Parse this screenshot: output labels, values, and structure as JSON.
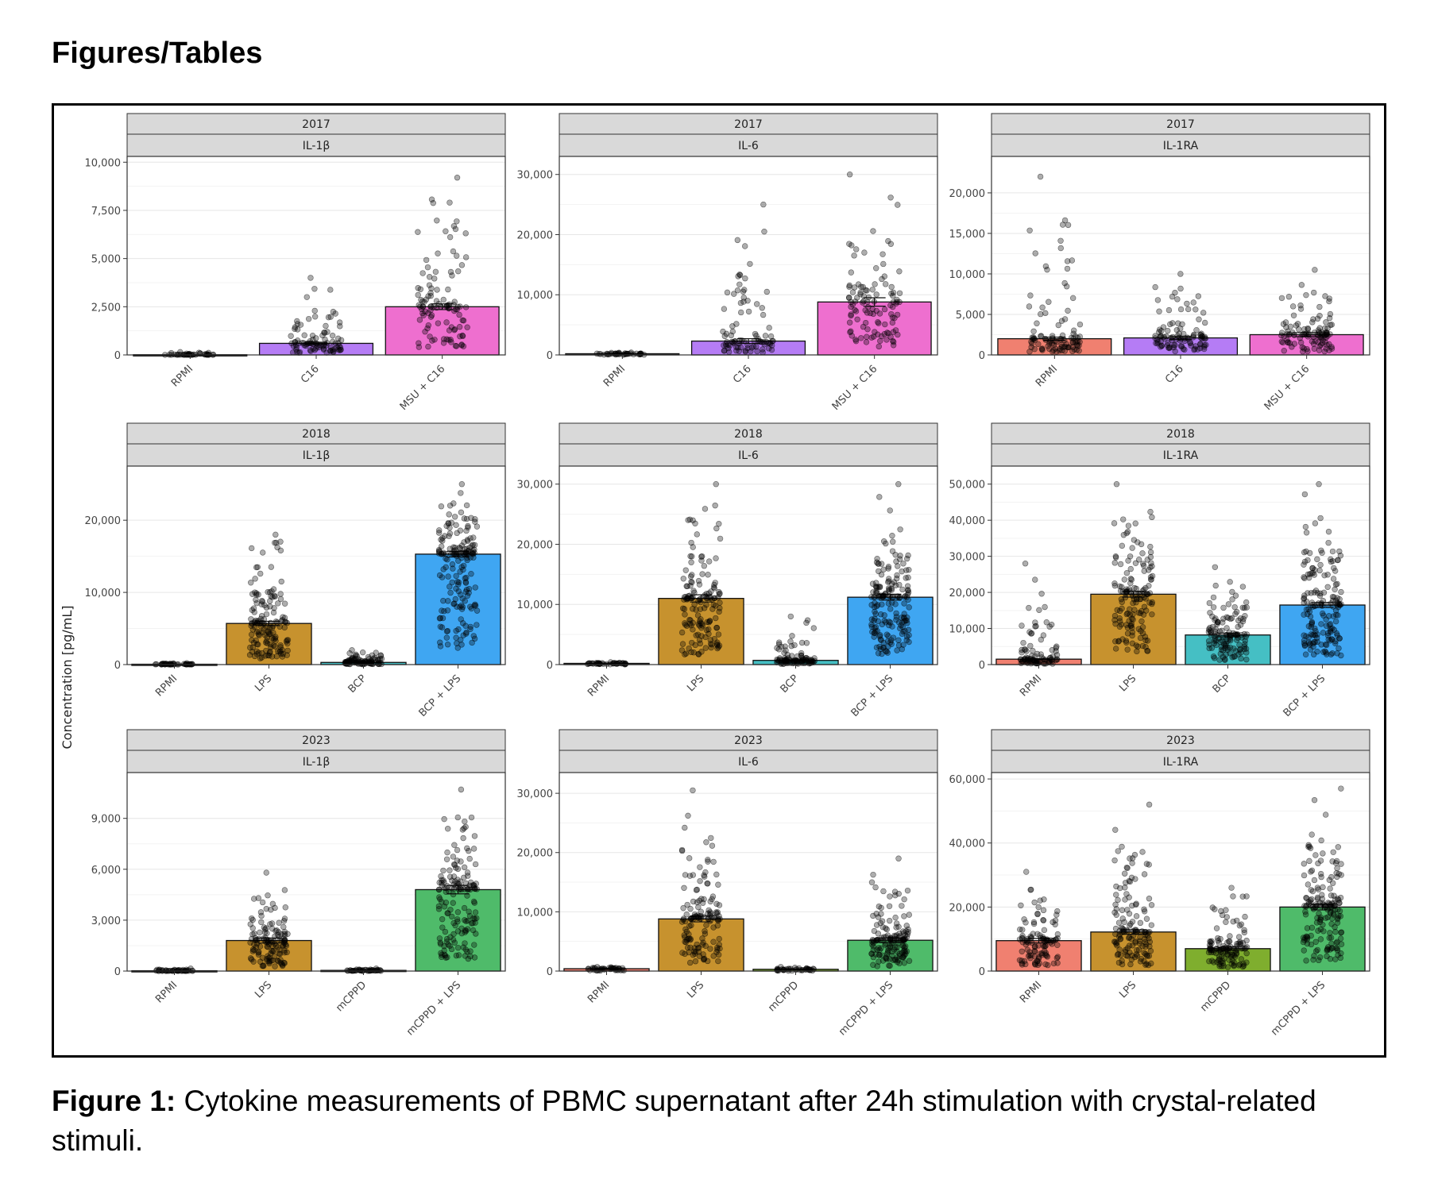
{
  "heading": "Figures/Tables",
  "caption": {
    "label": "Figure 1:",
    "text": " Cytokine measurements of PBMC supernatant after 24h stimulation with crystal-related stimuli."
  },
  "colors": {
    "RPMI": "#f08070",
    "C16": "#b57cf5",
    "MSU + C16": "#ee6fcf",
    "LPS": "#c7922e",
    "BCP": "#45bfc4",
    "BCP + LPS": "#3fa6f2",
    "mCPPD": "#7fae2e",
    "mCPPD + LPS": "#4fbb6a",
    "neutral": "#555555"
  },
  "chart_data": [
    {
      "type": "bar",
      "year": "2017",
      "cytokine": "IL-1β",
      "categories": [
        "RPMI",
        "C16",
        "MSU + C16"
      ],
      "values": [
        10,
        600,
        2500
      ],
      "errors": [
        3,
        60,
        150
      ],
      "ylim": [
        0,
        10300
      ],
      "ticks": [
        0,
        2500,
        5000,
        7500,
        10000
      ],
      "tick_labels": [
        "0",
        "2,500",
        "5,000",
        "7,500",
        "10,000"
      ],
      "bar_colors": [
        "neutral",
        "C16",
        "MSU + C16"
      ],
      "points_max": [
        150,
        4000,
        9200
      ],
      "n_points": [
        40,
        90,
        110
      ]
    },
    {
      "type": "bar",
      "year": "2017",
      "cytokine": "IL-6",
      "categories": [
        "RPMI",
        "C16",
        "MSU + C16"
      ],
      "values": [
        200,
        2300,
        8800
      ],
      "errors": [
        50,
        400,
        700
      ],
      "ylim": [
        0,
        33000
      ],
      "ticks": [
        0,
        10000,
        20000,
        30000
      ],
      "tick_labels": [
        "0",
        "10,000",
        "20,000",
        "30,000"
      ],
      "bar_colors": [
        "neutral",
        "C16",
        "MSU + C16"
      ],
      "points_max": [
        400,
        25000,
        30000
      ],
      "n_points": [
        40,
        90,
        110
      ]
    },
    {
      "type": "bar",
      "year": "2017",
      "cytokine": "IL-1RA",
      "categories": [
        "RPMI",
        "C16",
        "MSU + C16"
      ],
      "values": [
        2000,
        2100,
        2500
      ],
      "errors": [
        200,
        200,
        250
      ],
      "ylim": [
        0,
        24500
      ],
      "ticks": [
        0,
        5000,
        10000,
        15000,
        20000
      ],
      "tick_labels": [
        "0",
        "5,000",
        "10,000",
        "15,000",
        "20,000"
      ],
      "bar_colors": [
        "RPMI",
        "C16",
        "MSU + C16"
      ],
      "points_max": [
        22000,
        10000,
        10500
      ],
      "n_points": [
        100,
        100,
        110
      ]
    },
    {
      "type": "bar",
      "year": "2018",
      "cytokine": "IL-1β",
      "categories": [
        "RPMI",
        "LPS",
        "BCP",
        "BCP + LPS"
      ],
      "values": [
        50,
        5700,
        300,
        15300
      ],
      "errors": [
        10,
        300,
        40,
        400
      ],
      "ylim": [
        0,
        27500
      ],
      "ticks": [
        0,
        10000,
        20000
      ],
      "tick_labels": [
        "0",
        "10,000",
        "20,000"
      ],
      "bar_colors": [
        "neutral",
        "LPS",
        "BCP",
        "BCP + LPS"
      ],
      "points_max": [
        200,
        18000,
        2000,
        25000
      ],
      "n_points": [
        40,
        150,
        100,
        180
      ],
      "tick_year": "2018"
    },
    {
      "type": "bar",
      "year": "2018",
      "cytokine": "IL-6",
      "categories": [
        "RPMI",
        "LPS",
        "BCP",
        "BCP + LPS"
      ],
      "values": [
        200,
        11000,
        700,
        11200
      ],
      "errors": [
        50,
        600,
        100,
        500
      ],
      "ylim": [
        0,
        33000
      ],
      "ticks": [
        0,
        10000,
        20000,
        30000
      ],
      "tick_labels": [
        "0",
        "10,000",
        "20,000",
        "30,000"
      ],
      "bar_colors": [
        "neutral",
        "LPS",
        "BCP",
        "BCP + LPS"
      ],
      "points_max": [
        400,
        30000,
        8000,
        30000
      ],
      "n_points": [
        40,
        150,
        100,
        180
      ]
    },
    {
      "type": "bar",
      "year": "2018",
      "cytokine": "IL-1RA",
      "categories": [
        "RPMI",
        "LPS",
        "BCP",
        "BCP + LPS"
      ],
      "values": [
        1500,
        19500,
        8200,
        16500
      ],
      "errors": [
        150,
        800,
        500,
        700
      ],
      "ylim": [
        0,
        55000
      ],
      "ticks": [
        0,
        10000,
        20000,
        30000,
        40000,
        50000
      ],
      "tick_labels": [
        "0",
        "10,000",
        "20,000",
        "30,000",
        "40,000",
        "50,000"
      ],
      "bar_colors": [
        "RPMI",
        "LPS",
        "BCP",
        "BCP + LPS"
      ],
      "points_max": [
        28000,
        50000,
        27000,
        50000
      ],
      "n_points": [
        90,
        150,
        130,
        170
      ]
    },
    {
      "type": "bar",
      "year": "2023",
      "cytokine": "IL-1β",
      "categories": [
        "RPMI",
        "LPS",
        "mCPPD",
        "mCPPD + LPS"
      ],
      "values": [
        20,
        1800,
        40,
        4800
      ],
      "errors": [
        5,
        150,
        10,
        250
      ],
      "ylim": [
        0,
        11700
      ],
      "ticks": [
        0,
        3000,
        6000,
        9000
      ],
      "tick_labels": [
        "0",
        "3,000",
        "6,000",
        "9,000"
      ],
      "bar_colors": [
        "neutral",
        "LPS",
        "neutral",
        "mCPPD + LPS"
      ],
      "points_max": [
        150,
        5800,
        150,
        10700
      ],
      "n_points": [
        40,
        130,
        40,
        160
      ]
    },
    {
      "type": "bar",
      "year": "2023",
      "cytokine": "IL-6",
      "categories": [
        "RPMI",
        "LPS",
        "mCPPD",
        "mCPPD + LPS"
      ],
      "values": [
        400,
        8800,
        300,
        5200
      ],
      "errors": [
        80,
        500,
        60,
        400
      ],
      "ylim": [
        0,
        33500
      ],
      "ticks": [
        0,
        10000,
        20000,
        30000
      ],
      "tick_labels": [
        "0",
        "10,000",
        "20,000",
        "30,000"
      ],
      "bar_colors": [
        "RPMI",
        "LPS",
        "mCPPD",
        "mCPPD + LPS"
      ],
      "points_max": [
        700,
        30500,
        700,
        19000
      ],
      "n_points": [
        40,
        140,
        40,
        150
      ]
    },
    {
      "type": "bar",
      "year": "2023",
      "cytokine": "IL-1RA",
      "categories": [
        "RPMI",
        "LPS",
        "mCPPD",
        "mCPPD + LPS"
      ],
      "values": [
        9500,
        12200,
        7000,
        20000
      ],
      "errors": [
        700,
        700,
        500,
        900
      ],
      "ylim": [
        0,
        62000
      ],
      "ticks": [
        0,
        20000,
        40000,
        60000
      ],
      "tick_labels": [
        "0",
        "20,000",
        "40,000",
        "60,000"
      ],
      "bar_colors": [
        "RPMI",
        "LPS",
        "mCPPD",
        "mCPPD + LPS"
      ],
      "points_max": [
        31000,
        52000,
        26000,
        57000
      ],
      "n_points": [
        110,
        140,
        120,
        170
      ]
    }
  ],
  "y_axis_label": "Concentration [pg/mL]"
}
